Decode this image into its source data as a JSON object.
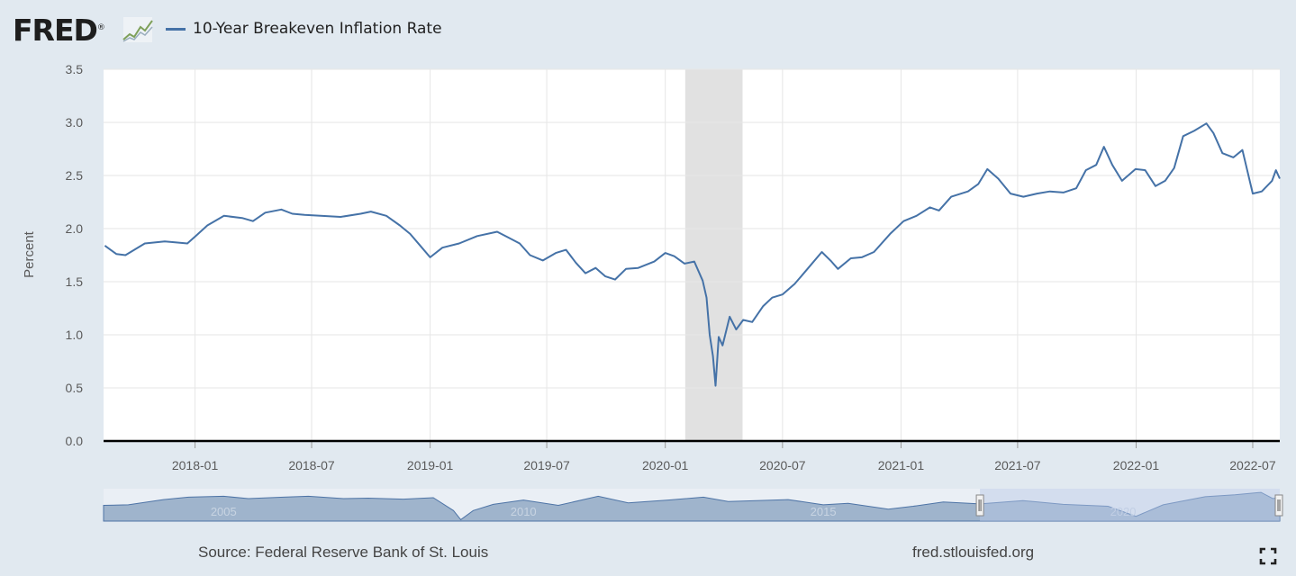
{
  "header": {
    "logo_text": "FRED",
    "logo_mark": "®"
  },
  "legend": {
    "label": "10-Year Breakeven Inflation Rate",
    "color": "#4572a7"
  },
  "footer": {
    "source": "Source: Federal Reserve Bank of St. Louis",
    "url": "fred.stlouisfed.org"
  },
  "colors": {
    "background": "#e1e9f0",
    "plot_background": "#ffffff",
    "series": "#4572a7",
    "recession_shading": "#e1e1e1",
    "gridline": "#e6e6e6",
    "navigator_fill": "#9fb4cc",
    "navigator_selection": "#b9c8e6"
  },
  "icons": {
    "logo": "line-graph-icon",
    "fullscreen": "expand-corners-icon"
  },
  "chart_data": {
    "type": "line",
    "title": "",
    "xlabel": "",
    "ylabel": "Percent",
    "ylim": [
      0,
      3.5
    ],
    "yticks": [
      "0.0",
      "0.5",
      "1.0",
      "1.5",
      "2.0",
      "2.5",
      "3.0",
      "3.5"
    ],
    "xlim": [
      "2017-08-12",
      "2022-08-12"
    ],
    "xticks": [
      "2018-01",
      "2018-07",
      "2019-01",
      "2019-07",
      "2020-01",
      "2020-07",
      "2021-01",
      "2021-07",
      "2022-01",
      "2022-07"
    ],
    "grid": true,
    "legend_position": "top-left",
    "recessions": [
      [
        "2020-02-01",
        "2020-04-30"
      ]
    ],
    "series": [
      {
        "name": "10-Year Breakeven Inflation Rate",
        "points": [
          [
            "2017-08-14",
            1.84
          ],
          [
            "2017-09-01",
            1.76
          ],
          [
            "2017-09-15",
            1.75
          ],
          [
            "2017-10-15",
            1.86
          ],
          [
            "2017-11-15",
            1.88
          ],
          [
            "2017-12-01",
            1.87
          ],
          [
            "2017-12-20",
            1.86
          ],
          [
            "2018-01-02",
            1.93
          ],
          [
            "2018-01-20",
            2.03
          ],
          [
            "2018-02-15",
            2.12
          ],
          [
            "2018-03-15",
            2.1
          ],
          [
            "2018-04-01",
            2.07
          ],
          [
            "2018-04-20",
            2.15
          ],
          [
            "2018-05-15",
            2.18
          ],
          [
            "2018-06-01",
            2.14
          ],
          [
            "2018-06-20",
            2.13
          ],
          [
            "2018-07-15",
            2.12
          ],
          [
            "2018-08-15",
            2.11
          ],
          [
            "2018-09-15",
            2.14
          ],
          [
            "2018-10-01",
            2.16
          ],
          [
            "2018-10-25",
            2.12
          ],
          [
            "2018-11-15",
            2.03
          ],
          [
            "2018-12-01",
            1.95
          ],
          [
            "2018-12-15",
            1.85
          ],
          [
            "2019-01-01",
            1.73
          ],
          [
            "2019-01-20",
            1.82
          ],
          [
            "2019-02-15",
            1.86
          ],
          [
            "2019-03-15",
            1.93
          ],
          [
            "2019-04-15",
            1.97
          ],
          [
            "2019-05-01",
            1.92
          ],
          [
            "2019-05-20",
            1.86
          ],
          [
            "2019-06-05",
            1.75
          ],
          [
            "2019-06-25",
            1.7
          ],
          [
            "2019-07-15",
            1.77
          ],
          [
            "2019-07-31",
            1.8
          ],
          [
            "2019-08-15",
            1.68
          ],
          [
            "2019-08-30",
            1.58
          ],
          [
            "2019-09-15",
            1.63
          ],
          [
            "2019-09-30",
            1.55
          ],
          [
            "2019-10-15",
            1.52
          ],
          [
            "2019-11-01",
            1.62
          ],
          [
            "2019-11-20",
            1.63
          ],
          [
            "2019-12-15",
            1.69
          ],
          [
            "2020-01-01",
            1.77
          ],
          [
            "2020-01-15",
            1.74
          ],
          [
            "2020-01-31",
            1.67
          ],
          [
            "2020-02-15",
            1.69
          ],
          [
            "2020-02-28",
            1.51
          ],
          [
            "2020-03-05",
            1.35
          ],
          [
            "2020-03-10",
            1.0
          ],
          [
            "2020-03-15",
            0.8
          ],
          [
            "2020-03-19",
            0.52
          ],
          [
            "2020-03-24",
            0.98
          ],
          [
            "2020-03-30",
            0.9
          ],
          [
            "2020-04-10",
            1.17
          ],
          [
            "2020-04-20",
            1.05
          ],
          [
            "2020-05-01",
            1.14
          ],
          [
            "2020-05-15",
            1.12
          ],
          [
            "2020-06-01",
            1.27
          ],
          [
            "2020-06-15",
            1.35
          ],
          [
            "2020-07-01",
            1.38
          ],
          [
            "2020-07-20",
            1.48
          ],
          [
            "2020-08-10",
            1.63
          ],
          [
            "2020-08-31",
            1.78
          ],
          [
            "2020-09-15",
            1.69
          ],
          [
            "2020-09-25",
            1.62
          ],
          [
            "2020-10-15",
            1.72
          ],
          [
            "2020-11-01",
            1.73
          ],
          [
            "2020-11-20",
            1.78
          ],
          [
            "2020-12-15",
            1.95
          ],
          [
            "2021-01-05",
            2.07
          ],
          [
            "2021-01-25",
            2.12
          ],
          [
            "2021-02-15",
            2.2
          ],
          [
            "2021-03-01",
            2.17
          ],
          [
            "2021-03-20",
            2.3
          ],
          [
            "2021-04-15",
            2.35
          ],
          [
            "2021-05-01",
            2.42
          ],
          [
            "2021-05-15",
            2.56
          ],
          [
            "2021-06-01",
            2.47
          ],
          [
            "2021-06-20",
            2.33
          ],
          [
            "2021-07-10",
            2.3
          ],
          [
            "2021-07-31",
            2.33
          ],
          [
            "2021-08-20",
            2.35
          ],
          [
            "2021-09-10",
            2.34
          ],
          [
            "2021-09-30",
            2.38
          ],
          [
            "2021-10-15",
            2.55
          ],
          [
            "2021-10-31",
            2.6
          ],
          [
            "2021-11-12",
            2.77
          ],
          [
            "2021-11-25",
            2.6
          ],
          [
            "2021-12-10",
            2.45
          ],
          [
            "2021-12-31",
            2.56
          ],
          [
            "2022-01-15",
            2.55
          ],
          [
            "2022-01-31",
            2.4
          ],
          [
            "2022-02-15",
            2.45
          ],
          [
            "2022-03-01",
            2.57
          ],
          [
            "2022-03-15",
            2.87
          ],
          [
            "2022-04-01",
            2.92
          ],
          [
            "2022-04-20",
            2.99
          ],
          [
            "2022-05-01",
            2.9
          ],
          [
            "2022-05-15",
            2.71
          ],
          [
            "2022-06-01",
            2.67
          ],
          [
            "2022-06-15",
            2.74
          ],
          [
            "2022-07-01",
            2.33
          ],
          [
            "2022-07-15",
            2.35
          ],
          [
            "2022-07-31",
            2.45
          ],
          [
            "2022-08-06",
            2.55
          ],
          [
            "2022-08-12",
            2.47
          ]
        ]
      }
    ],
    "navigator": {
      "xlim": [
        "2003-01-01",
        "2022-08-12"
      ],
      "year_labels": [
        "2005",
        "2010",
        "2015",
        "2020"
      ],
      "selected_range": [
        "2017-08-12",
        "2022-08-12"
      ],
      "points": [
        [
          "2003-01-01",
          1.65
        ],
        [
          "2003-06-01",
          1.7
        ],
        [
          "2004-01-01",
          2.25
        ],
        [
          "2004-06-01",
          2.5
        ],
        [
          "2005-01-01",
          2.6
        ],
        [
          "2005-06-01",
          2.35
        ],
        [
          "2006-01-01",
          2.5
        ],
        [
          "2006-06-01",
          2.6
        ],
        [
          "2007-01-01",
          2.35
        ],
        [
          "2007-06-01",
          2.4
        ],
        [
          "2008-01-01",
          2.3
        ],
        [
          "2008-07-01",
          2.45
        ],
        [
          "2008-11-01",
          1.1
        ],
        [
          "2008-12-15",
          0.15
        ],
        [
          "2009-03-01",
          1.1
        ],
        [
          "2009-07-01",
          1.75
        ],
        [
          "2010-01-01",
          2.2
        ],
        [
          "2010-08-01",
          1.65
        ],
        [
          "2011-04-01",
          2.6
        ],
        [
          "2011-10-01",
          1.9
        ],
        [
          "2012-06-01",
          2.2
        ],
        [
          "2013-01-01",
          2.5
        ],
        [
          "2013-06-01",
          2.05
        ],
        [
          "2014-06-01",
          2.25
        ],
        [
          "2015-01-01",
          1.7
        ],
        [
          "2015-06-01",
          1.85
        ],
        [
          "2016-02-01",
          1.25
        ],
        [
          "2016-07-01",
          1.55
        ],
        [
          "2017-01-01",
          2.0
        ],
        [
          "2017-08-12",
          1.8
        ],
        [
          "2018-05-01",
          2.15
        ],
        [
          "2019-01-01",
          1.75
        ],
        [
          "2019-10-01",
          1.55
        ],
        [
          "2020-03-19",
          0.5
        ],
        [
          "2020-09-01",
          1.7
        ],
        [
          "2021-05-15",
          2.55
        ],
        [
          "2021-11-12",
          2.75
        ],
        [
          "2022-04-20",
          3.0
        ],
        [
          "2022-07-01",
          2.35
        ],
        [
          "2022-08-12",
          2.5
        ]
      ]
    }
  }
}
